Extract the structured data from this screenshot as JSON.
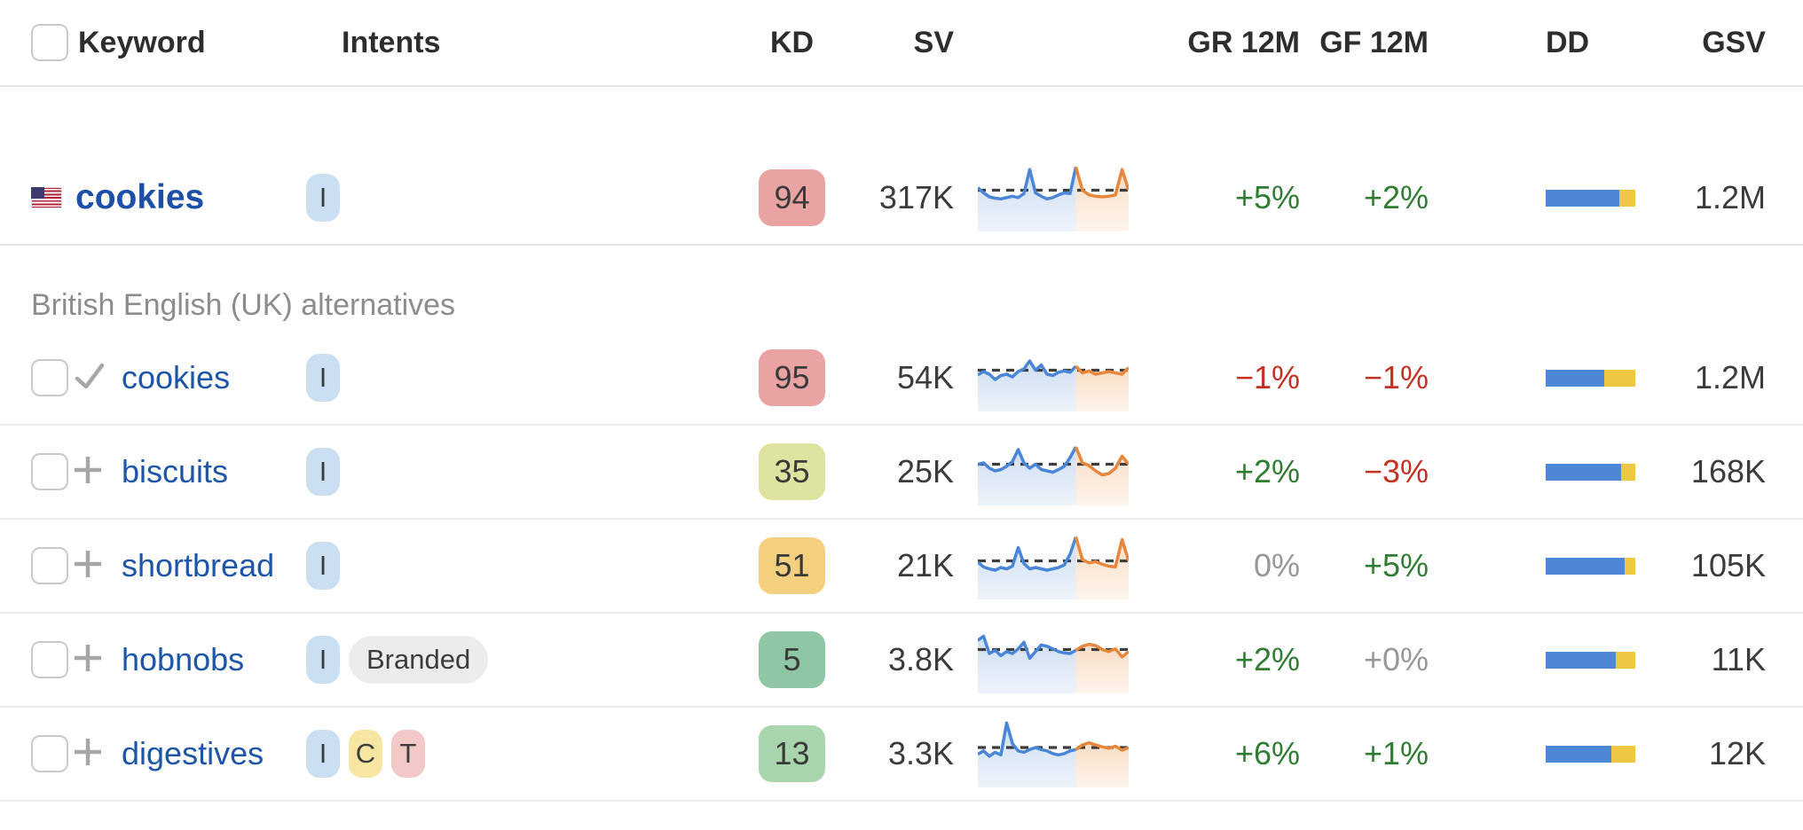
{
  "header": {
    "columns": {
      "keyword": "Keyword",
      "intents": "Intents",
      "kd": "KD",
      "sv": "SV",
      "gr": "GR 12M",
      "gf": "GF 12M",
      "dd": "DD",
      "gsv": "GSV"
    }
  },
  "section": {
    "label": "British English (UK) alternatives"
  },
  "colors": {
    "link_blue": "#1d55a9",
    "positive_green": "#2f7d32",
    "negative_red": "#c23122",
    "neutral_gray": "#979797",
    "kd_red": "#e9a3a2",
    "kd_olive": "#dfe3a0",
    "kd_amber": "#f4d07e",
    "kd_green": "#8fc7a4",
    "kd_lightgreen": "#a9d5ad",
    "intent_i_bg": "#cbdff2",
    "intent_c_bg": "#f6e6a2",
    "intent_t_bg": "#f2c9c7",
    "branded_bg": "#ececec",
    "dd_blue": "#4e87d5",
    "dd_yellow": "#eec843",
    "spark_blue": "#4a86d8",
    "spark_orange": "#e8873b",
    "spark_dash": "#3c3c3c"
  },
  "rows": [
    {
      "keyword": "cookies",
      "country_icon": "us-flag",
      "intents": [
        {
          "label": "I"
        }
      ],
      "kd": "94",
      "sv": "317K",
      "gr": "+5%",
      "gf": "+2%",
      "gsv": "1.2M",
      "dd": {
        "blue_pct": 82,
        "yellow_pct": 18
      },
      "trend": {
        "dash": 0.62,
        "blue": [
          0.66,
          0.58,
          0.52,
          0.5,
          0.49,
          0.51,
          0.53,
          0.51,
          0.57,
          0.93,
          0.58,
          0.53,
          0.49,
          0.51,
          0.55,
          0.58,
          0.57,
          0.97
        ],
        "orange": [
          0.97,
          0.62,
          0.55,
          0.53,
          0.52,
          0.53,
          0.55,
          0.93,
          0.62
        ]
      }
    },
    {
      "keyword": "cookies",
      "row_icon": "check",
      "intents": [
        {
          "label": "I"
        }
      ],
      "kd": "95",
      "sv": "54K",
      "gr": "−1%",
      "gf": "−1%",
      "gsv": "1.2M",
      "dd": {
        "blue_pct": 65,
        "yellow_pct": 35
      },
      "trend": {
        "dash": 0.62,
        "blue": [
          0.55,
          0.6,
          0.56,
          0.48,
          0.54,
          0.56,
          0.52,
          0.6,
          0.64,
          0.76,
          0.62,
          0.7,
          0.56,
          0.54,
          0.59,
          0.61,
          0.59,
          0.68
        ],
        "orange": [
          0.68,
          0.58,
          0.61,
          0.56,
          0.58,
          0.6,
          0.58,
          0.56,
          0.66
        ]
      }
    },
    {
      "keyword": "biscuits",
      "row_icon": "plus",
      "intents": [
        {
          "label": "I"
        }
      ],
      "kd": "35",
      "sv": "25K",
      "gr": "+2%",
      "gf": "−3%",
      "gsv": "168K",
      "dd": {
        "blue_pct": 84,
        "yellow_pct": 16
      },
      "trend": {
        "dash": 0.62,
        "blue": [
          0.62,
          0.64,
          0.56,
          0.52,
          0.54,
          0.59,
          0.66,
          0.84,
          0.64,
          0.56,
          0.62,
          0.54,
          0.52,
          0.5,
          0.54,
          0.59,
          0.72,
          0.88
        ],
        "orange": [
          0.88,
          0.64,
          0.6,
          0.52,
          0.46,
          0.48,
          0.56,
          0.74,
          0.62
        ]
      }
    },
    {
      "keyword": "shortbread",
      "row_icon": "plus",
      "intents": [
        {
          "label": "I"
        }
      ],
      "kd": "51",
      "sv": "21K",
      "gr": "0%",
      "gf": "+5%",
      "gsv": "105K",
      "dd": {
        "blue_pct": 88,
        "yellow_pct": 12
      },
      "trend": {
        "dash": 0.58,
        "blue": [
          0.56,
          0.49,
          0.46,
          0.44,
          0.48,
          0.46,
          0.5,
          0.78,
          0.54,
          0.46,
          0.48,
          0.46,
          0.44,
          0.46,
          0.48,
          0.52,
          0.68,
          0.94
        ],
        "orange": [
          0.94,
          0.6,
          0.55,
          0.57,
          0.53,
          0.5,
          0.49,
          0.9,
          0.58
        ]
      }
    },
    {
      "keyword": "hobnobs",
      "row_icon": "plus",
      "intents": [
        {
          "label": "I"
        },
        {
          "label": "Branded"
        }
      ],
      "kd": "5",
      "sv": "3.8K",
      "gr": "+2%",
      "gf": "+0%",
      "gsv": "11K",
      "dd": {
        "blue_pct": 78,
        "yellow_pct": 22
      },
      "trend": {
        "dash": 0.66,
        "blue": [
          0.8,
          0.86,
          0.6,
          0.65,
          0.57,
          0.63,
          0.6,
          0.67,
          0.77,
          0.53,
          0.63,
          0.73,
          0.71,
          0.67,
          0.63,
          0.61,
          0.6,
          0.65
        ],
        "orange": [
          0.65,
          0.71,
          0.74,
          0.72,
          0.66,
          0.63,
          0.67,
          0.55,
          0.63
        ]
      }
    },
    {
      "keyword": "digestives",
      "row_icon": "plus",
      "intents": [
        {
          "label": "I"
        },
        {
          "label": "C"
        },
        {
          "label": "T"
        }
      ],
      "kd": "13",
      "sv": "3.3K",
      "gr": "+6%",
      "gf": "+1%",
      "gsv": "12K",
      "dd": {
        "blue_pct": 73,
        "yellow_pct": 27
      },
      "trend": {
        "dash": 0.6,
        "blue": [
          0.5,
          0.55,
          0.47,
          0.53,
          0.49,
          0.97,
          0.66,
          0.55,
          0.53,
          0.57,
          0.6,
          0.57,
          0.55,
          0.51,
          0.49,
          0.51,
          0.55,
          0.57
        ],
        "orange": [
          0.57,
          0.64,
          0.67,
          0.64,
          0.61,
          0.59,
          0.62,
          0.56,
          0.6
        ]
      }
    }
  ]
}
